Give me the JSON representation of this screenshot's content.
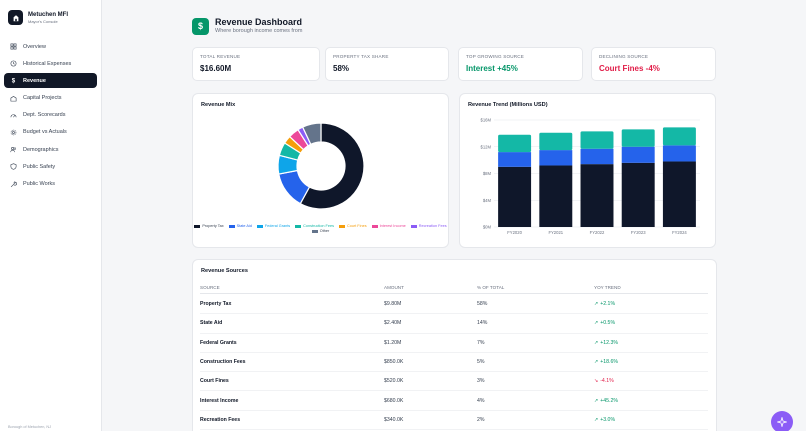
{
  "sidebar": {
    "brand_name": "Metuchen MFI",
    "brand_sub": "Mayor's Console",
    "items": [
      {
        "label": "Overview",
        "icon": "grid-icon",
        "active": false
      },
      {
        "label": "Historical Expenses",
        "icon": "history-icon",
        "active": false
      },
      {
        "label": "Revenue",
        "icon": "dollar-icon",
        "active": true
      },
      {
        "label": "Capital Projects",
        "icon": "building-icon",
        "active": false
      },
      {
        "label": "Dept. Scorecards",
        "icon": "gauge-icon",
        "active": false
      },
      {
        "label": "Budget vs Actuals",
        "icon": "gear-icon",
        "active": false
      },
      {
        "label": "Demographics",
        "icon": "users-icon",
        "active": false
      },
      {
        "label": "Public Safety",
        "icon": "shield-icon",
        "active": false
      },
      {
        "label": "Public Works",
        "icon": "wrench-icon",
        "active": false
      }
    ],
    "footer": "Borough of Metuchen, NJ"
  },
  "header": {
    "title": "Revenue Dashboard",
    "subtitle": "Where borough income comes from",
    "icon": "$"
  },
  "kpis": [
    {
      "label": "Total Revenue",
      "value": "$16.60M",
      "tone": "default"
    },
    {
      "label": "Property Tax Share",
      "value": "58%",
      "tone": "default"
    },
    {
      "label": "Top Growing Source",
      "value": "Interest +45%",
      "tone": "green"
    },
    {
      "label": "Declining Source",
      "value": "Court Fines -4%",
      "tone": "red"
    }
  ],
  "revenue_mix": {
    "title": "Revenue Mix"
  },
  "revenue_trend": {
    "title": "Revenue Trend (Millions USD)"
  },
  "chart_data": [
    {
      "type": "pie",
      "title": "Revenue Mix",
      "categories": [
        "Property Tax",
        "State Aid",
        "Federal Grants",
        "Construction Fees",
        "Court Fines",
        "Interest Income",
        "Recreation Fees",
        "Other"
      ],
      "values": [
        58,
        14,
        7,
        5,
        3,
        4,
        2,
        7
      ],
      "colors": [
        "#0f172a",
        "#2563eb",
        "#0ea5e9",
        "#14b8a6",
        "#f59e0b",
        "#ec4899",
        "#8b5cf6",
        "#64748b"
      ],
      "legend": "bottom",
      "donut": true
    },
    {
      "type": "bar",
      "stacked": true,
      "title": "Revenue Trend (Millions USD)",
      "categories": [
        "FY2020",
        "FY2021",
        "FY2022",
        "FY2023",
        "FY2024"
      ],
      "series": [
        {
          "values": [
            9.0,
            9.2,
            9.4,
            9.6,
            9.8
          ],
          "color": "#0f172a"
        },
        {
          "values": [
            2.2,
            2.3,
            2.3,
            2.4,
            2.4
          ],
          "color": "#2563eb"
        },
        {
          "values": [
            2.6,
            2.6,
            2.6,
            2.6,
            2.7
          ],
          "color": "#14b8a6"
        }
      ],
      "ylim": [
        0,
        16
      ],
      "yticks": [
        "$0M",
        "$4M",
        "$8M",
        "$12M",
        "$16M"
      ],
      "ytick_values": [
        0,
        4,
        8,
        12,
        16
      ],
      "grid": true
    }
  ],
  "sources": {
    "title": "Revenue Sources",
    "columns": [
      "Source",
      "Amount",
      "% of Total",
      "YoY Trend"
    ],
    "rows": [
      {
        "source": "Property Tax",
        "amount": "$9.80M",
        "pct": "58%",
        "trend": "+2.1%",
        "dir": "up"
      },
      {
        "source": "State Aid",
        "amount": "$2.40M",
        "pct": "14%",
        "trend": "+0.5%",
        "dir": "up"
      },
      {
        "source": "Federal Grants",
        "amount": "$1.20M",
        "pct": "7%",
        "trend": "+12.3%",
        "dir": "up"
      },
      {
        "source": "Construction Fees",
        "amount": "$850.0K",
        "pct": "5%",
        "trend": "+18.6%",
        "dir": "up"
      },
      {
        "source": "Court Fines",
        "amount": "$520.0K",
        "pct": "3%",
        "trend": "-4.1%",
        "dir": "down"
      },
      {
        "source": "Interest Income",
        "amount": "$680.0K",
        "pct": "4%",
        "trend": "+45.2%",
        "dir": "up"
      },
      {
        "source": "Recreation Fees",
        "amount": "$340.0K",
        "pct": "2%",
        "trend": "+3.0%",
        "dir": "up"
      }
    ]
  },
  "colors": {
    "accent": "#059669",
    "nav_active": "#111827",
    "negative": "#e11d48",
    "fab": "#8b5cf6"
  },
  "fab_icon": "sparkle-icon"
}
